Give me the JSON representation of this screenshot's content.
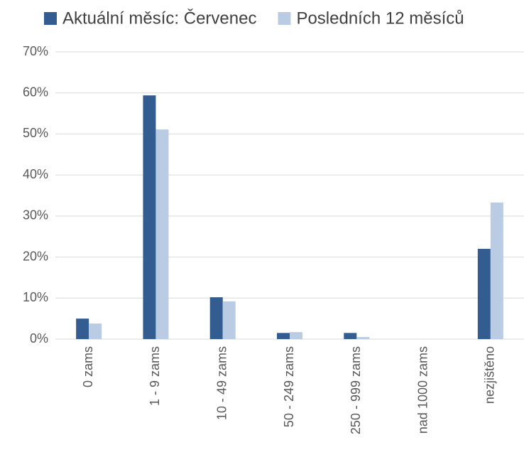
{
  "chart_data": {
    "type": "bar",
    "categories": [
      "0 zams",
      "1 - 9 zams",
      "10 - 49 zams",
      "50 - 249 zams",
      "250 - 999 zams",
      "nad 1000 zams",
      "nezjištěno"
    ],
    "series": [
      {
        "name": "Aktuální měsíc: Červenec",
        "color": "#335c91",
        "values": [
          5.0,
          59.4,
          10.2,
          1.5,
          1.5,
          0,
          22.0
        ]
      },
      {
        "name": "Posledních 12 měsíců",
        "color": "#b9cce4",
        "values": [
          3.8,
          51.1,
          9.2,
          1.7,
          0.5,
          0,
          33.3
        ]
      }
    ],
    "ylim": [
      0,
      70
    ],
    "yticks": [
      {
        "value": 0,
        "label": "0%"
      },
      {
        "value": 10,
        "label": "10%"
      },
      {
        "value": 20,
        "label": "20%"
      },
      {
        "value": 30,
        "label": "30%"
      },
      {
        "value": 40,
        "label": "40%"
      },
      {
        "value": 50,
        "label": "50%"
      },
      {
        "value": 60,
        "label": "60%"
      },
      {
        "value": 70,
        "label": "70%"
      }
    ],
    "grid": true,
    "legend": "top"
  }
}
